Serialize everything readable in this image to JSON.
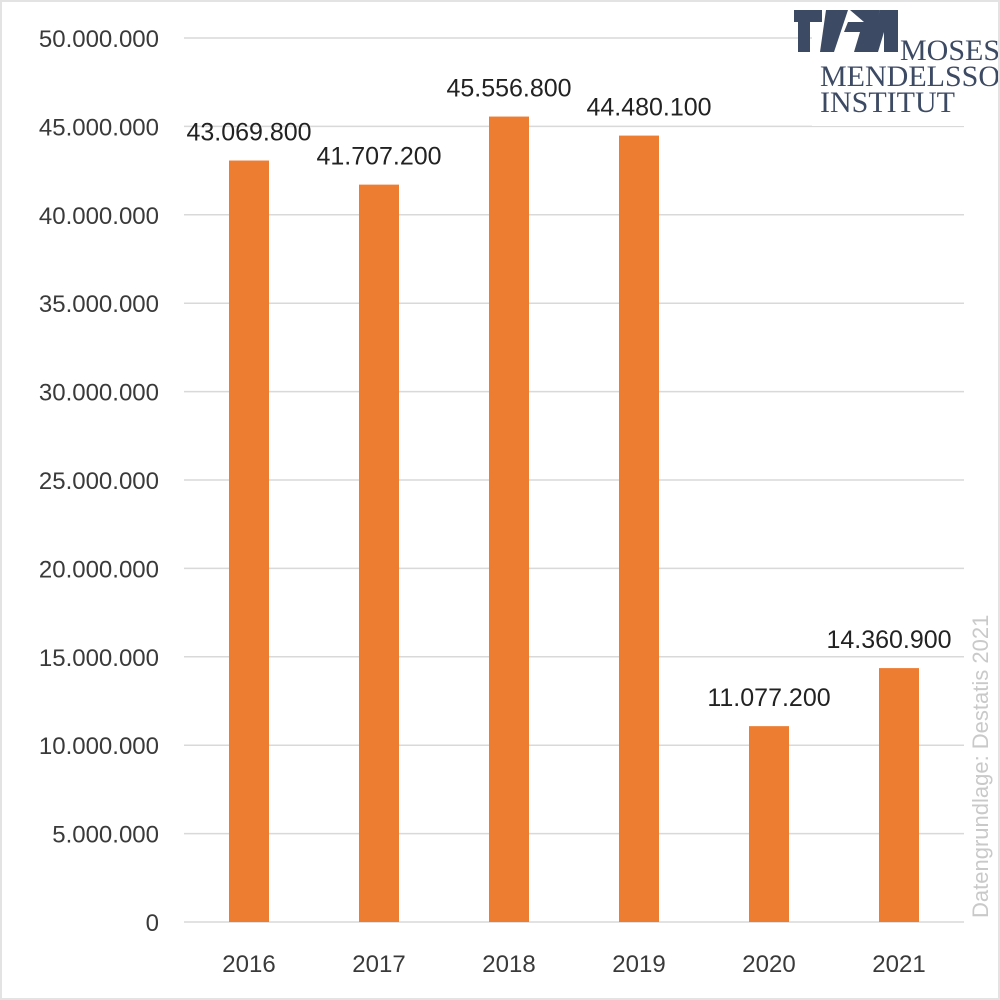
{
  "chart_data": {
    "type": "bar",
    "categories": [
      "2016",
      "2017",
      "2018",
      "2019",
      "2020",
      "2021"
    ],
    "values": [
      43069800,
      41707200,
      45556800,
      44480100,
      11077200,
      14360900
    ],
    "data_labels": [
      "43.069.800",
      "41.707.200",
      "45.556.800",
      "44.480.100",
      "11.077.200",
      "14.360.900"
    ],
    "ylim": [
      0,
      50000000
    ],
    "y_ticks": [
      0,
      5000000,
      10000000,
      15000000,
      20000000,
      25000000,
      30000000,
      35000000,
      40000000,
      45000000,
      50000000
    ],
    "y_tick_labels": [
      "0",
      "5.000.000",
      "10.000.000",
      "15.000.000",
      "20.000.000",
      "25.000.000",
      "30.000.000",
      "35.000.000",
      "40.000.000",
      "45.000.000",
      "50.000.000"
    ],
    "grid": true,
    "bar_color": "#ed7d31",
    "grid_color": "#d9d9d9"
  },
  "credit": "Datengrundlage: Destatis 2021",
  "logo": {
    "lines": [
      "MOSES",
      "MENDELSSOHN",
      "INSTITUT"
    ],
    "color": "#3d4a63"
  }
}
